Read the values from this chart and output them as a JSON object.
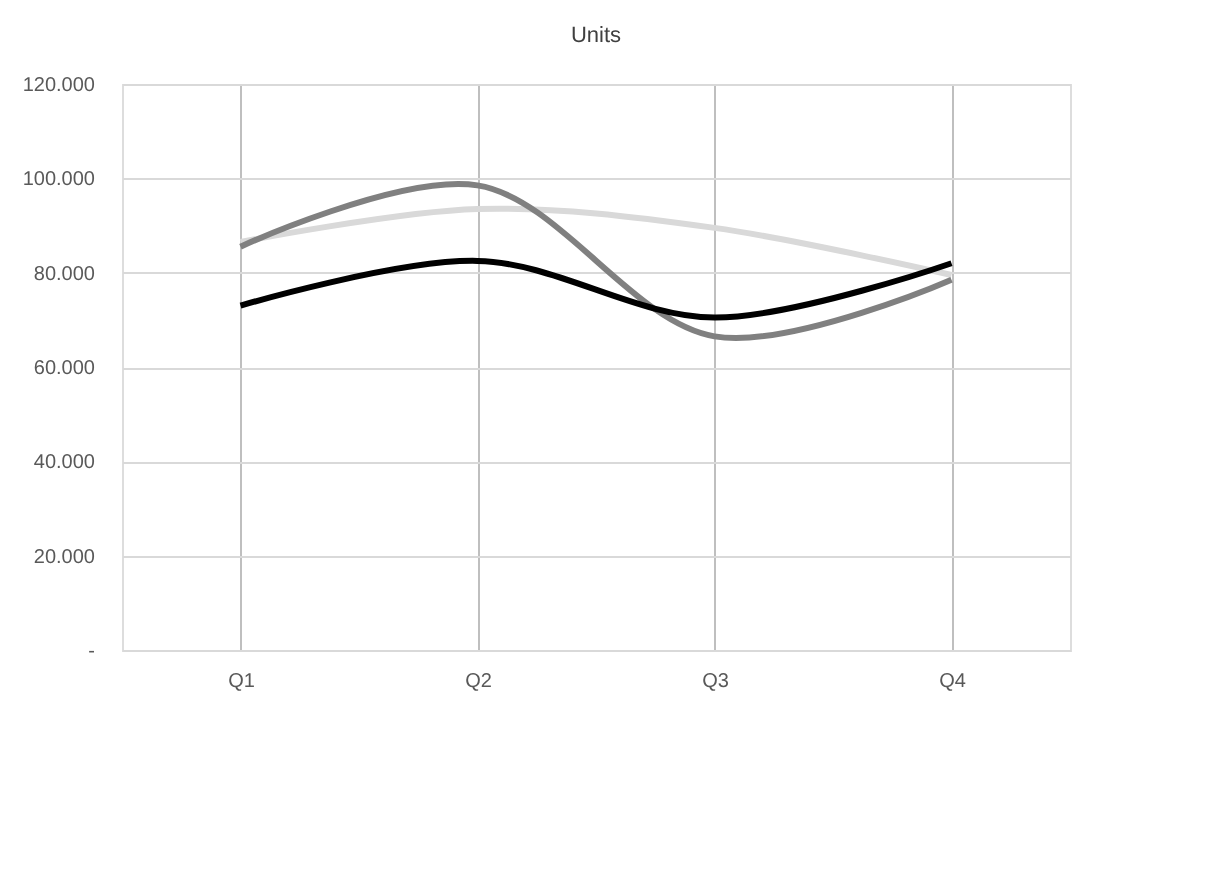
{
  "chart_data": {
    "type": "line",
    "title": "Units",
    "categories": [
      "Q1",
      "Q2",
      "Q3",
      "Q4"
    ],
    "series": [
      {
        "color": "#d9d9d9",
        "values": [
          86500,
          93500,
          89500,
          79500
        ]
      },
      {
        "color": "#808080",
        "values": [
          85500,
          98500,
          66500,
          78500
        ]
      },
      {
        "color": "#000000",
        "values": [
          73000,
          82500,
          70500,
          82000
        ]
      }
    ],
    "ylim": [
      0,
      120000
    ],
    "yticks": [
      {
        "value": 0,
        "label": "-"
      },
      {
        "value": 20000,
        "label": "20.000"
      },
      {
        "value": 40000,
        "label": "40.000"
      },
      {
        "value": 60000,
        "label": "60.000"
      },
      {
        "value": 80000,
        "label": "80.000"
      },
      {
        "value": 100000,
        "label": "100.000"
      },
      {
        "value": 120000,
        "label": "120.000"
      }
    ],
    "grid": true,
    "marker": "none",
    "line_style": "solid"
  }
}
